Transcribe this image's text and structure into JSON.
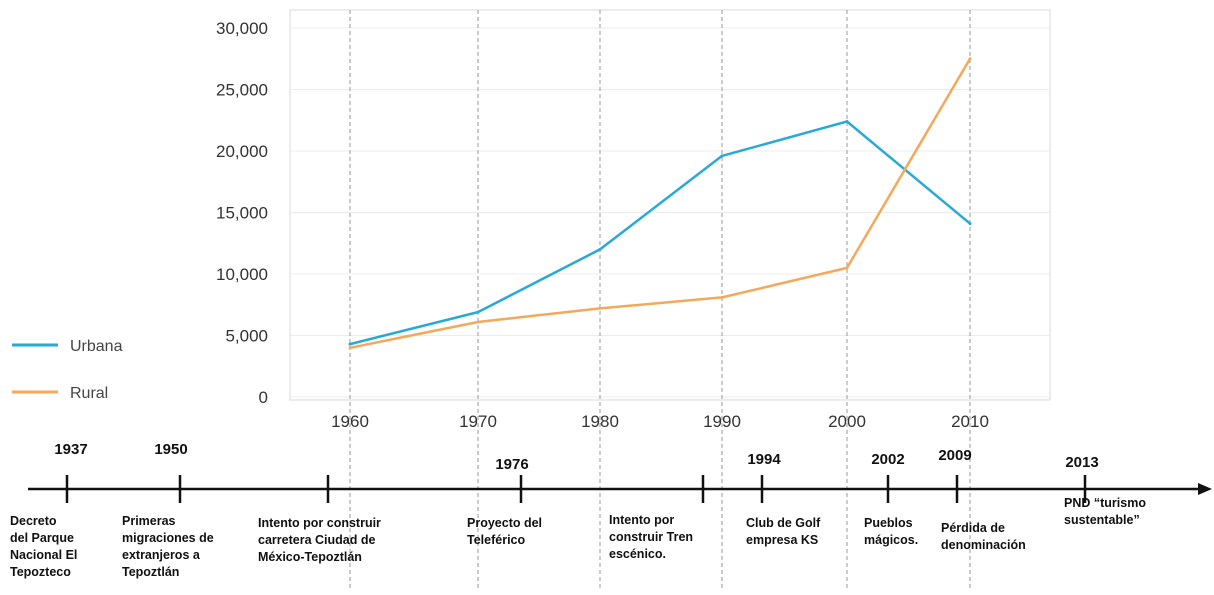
{
  "chart_data": {
    "type": "line",
    "categories": [
      "1960",
      "1970",
      "1980",
      "1990",
      "2000",
      "2010"
    ],
    "y_ticks": [
      "0",
      "5,000",
      "10,000",
      "15,000",
      "20,000",
      "25,000",
      "30,000"
    ],
    "ylim": [
      0,
      30000
    ],
    "grid": true,
    "legend_position": "left",
    "series": [
      {
        "name": "Urbana",
        "color": "#29a9d6",
        "values": [
          4300,
          6900,
          12000,
          19600,
          22400,
          14100
        ]
      },
      {
        "name": "Rural",
        "color": "#f5a85a",
        "values": [
          4000,
          6100,
          7200,
          8100,
          10500,
          27500
        ]
      }
    ]
  },
  "timeline": {
    "events": [
      {
        "year": "1937",
        "lines": [
          "Decreto",
          "del Parque",
          "Nacional  El",
          "Tepozteco"
        ]
      },
      {
        "year": "1950",
        "lines": [
          "Primeras",
          "migraciones de",
          "extranjeros a",
          "Tepoztlán"
        ]
      },
      {
        "year": "",
        "lines": [
          "Intento por construir",
          "carretera Ciudad de",
          "México-Tepoztlán"
        ]
      },
      {
        "year": "1976",
        "lines": [
          "Proyecto del",
          "Teleférico"
        ]
      },
      {
        "year": "",
        "lines": [
          "Intento por",
          "construir Tren",
          "escénico."
        ]
      },
      {
        "year": "1994",
        "lines": [
          "Club de Golf",
          "empresa KS"
        ]
      },
      {
        "year": "2002",
        "lines": [
          "Pueblos",
          "mágicos."
        ]
      },
      {
        "year": "2009",
        "lines": [
          "Pérdida de",
          "denominación"
        ]
      },
      {
        "year": "2013",
        "lines": [
          "PND “turismo",
          "sustentable”"
        ]
      }
    ]
  }
}
